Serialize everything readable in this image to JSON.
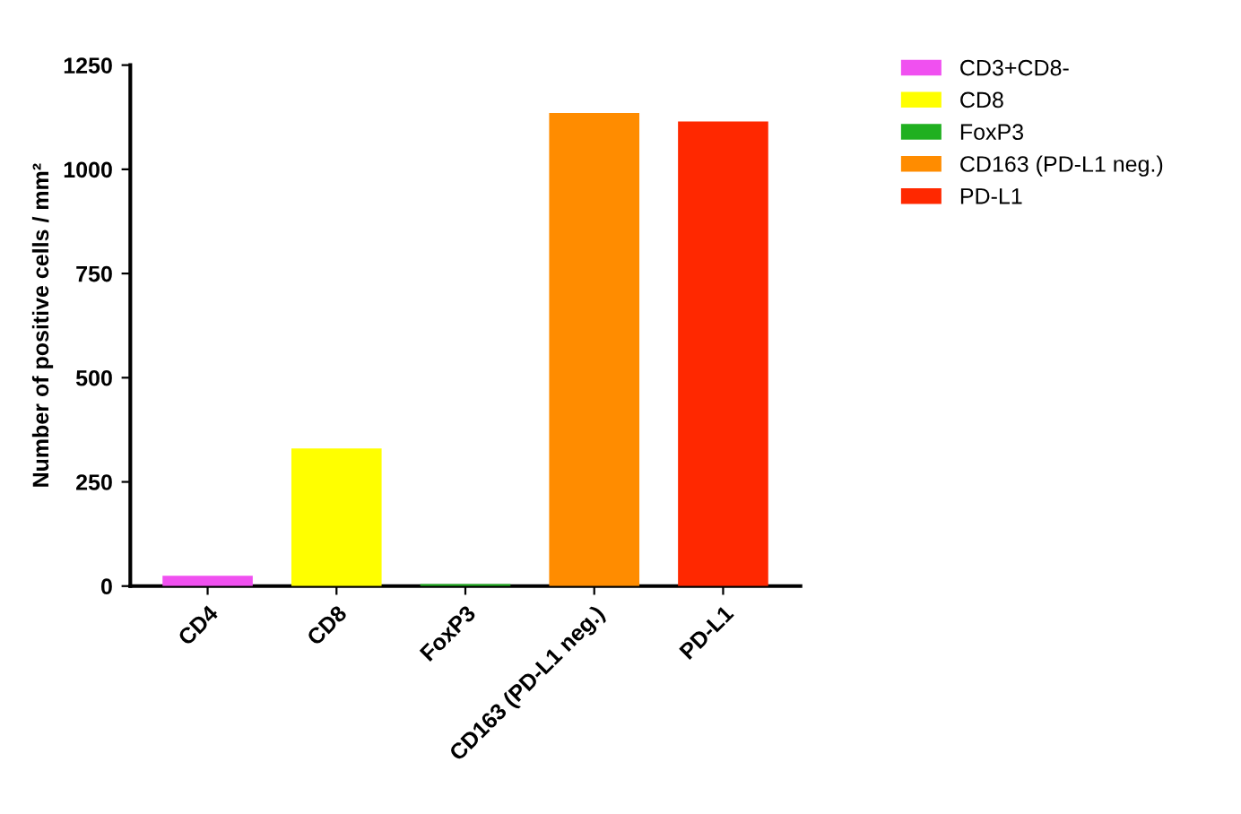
{
  "chart_data": {
    "type": "bar",
    "ylabel": "Number of positive cells / mm²",
    "categories": [
      "CD4",
      "CD8",
      "FoxP3",
      "CD163 (PD-L1 neg.)",
      "PD-L1"
    ],
    "series": [
      {
        "name": "CD3+CD8-",
        "color": "#f050f0",
        "values": [
          25,
          null,
          null,
          null,
          null
        ]
      },
      {
        "name": "CD8",
        "color": "#ffff00",
        "values": [
          null,
          330,
          null,
          null,
          null
        ]
      },
      {
        "name": "FoxP3",
        "color": "#20b020",
        "values": [
          null,
          null,
          5,
          null,
          null
        ]
      },
      {
        "name": "CD163 (PD-L1 neg.)",
        "color": "#ff8c00",
        "values": [
          null,
          null,
          null,
          1135,
          null
        ]
      },
      {
        "name": "PD-L1",
        "color": "#ff2800",
        "values": [
          null,
          null,
          null,
          null,
          1115
        ]
      }
    ],
    "ylim": [
      0,
      1250
    ],
    "yticks": [
      0,
      250,
      500,
      750,
      1000,
      1250
    ],
    "grid": false,
    "legend": "top right"
  }
}
